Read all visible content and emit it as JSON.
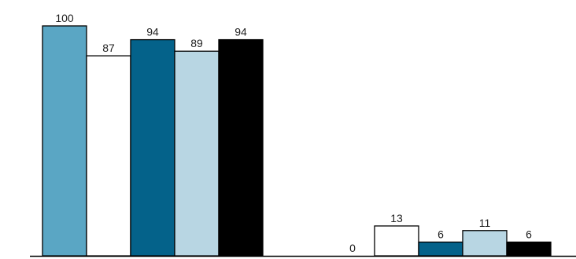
{
  "chart_data": {
    "type": "bar",
    "categories": [
      "",
      ""
    ],
    "series": [
      {
        "values": [
          100,
          0
        ],
        "color": "#5aa6c4"
      },
      {
        "values": [
          87,
          13
        ],
        "color": "#ffffff"
      },
      {
        "values": [
          94,
          6
        ],
        "color": "#04628a"
      },
      {
        "values": [
          89,
          11
        ],
        "color": "#b8d6e3"
      },
      {
        "values": [
          94,
          6
        ],
        "color": "#000000"
      }
    ],
    "ylim": [
      0,
      100
    ],
    "grid": false,
    "legend": "none",
    "data_labels": true
  }
}
